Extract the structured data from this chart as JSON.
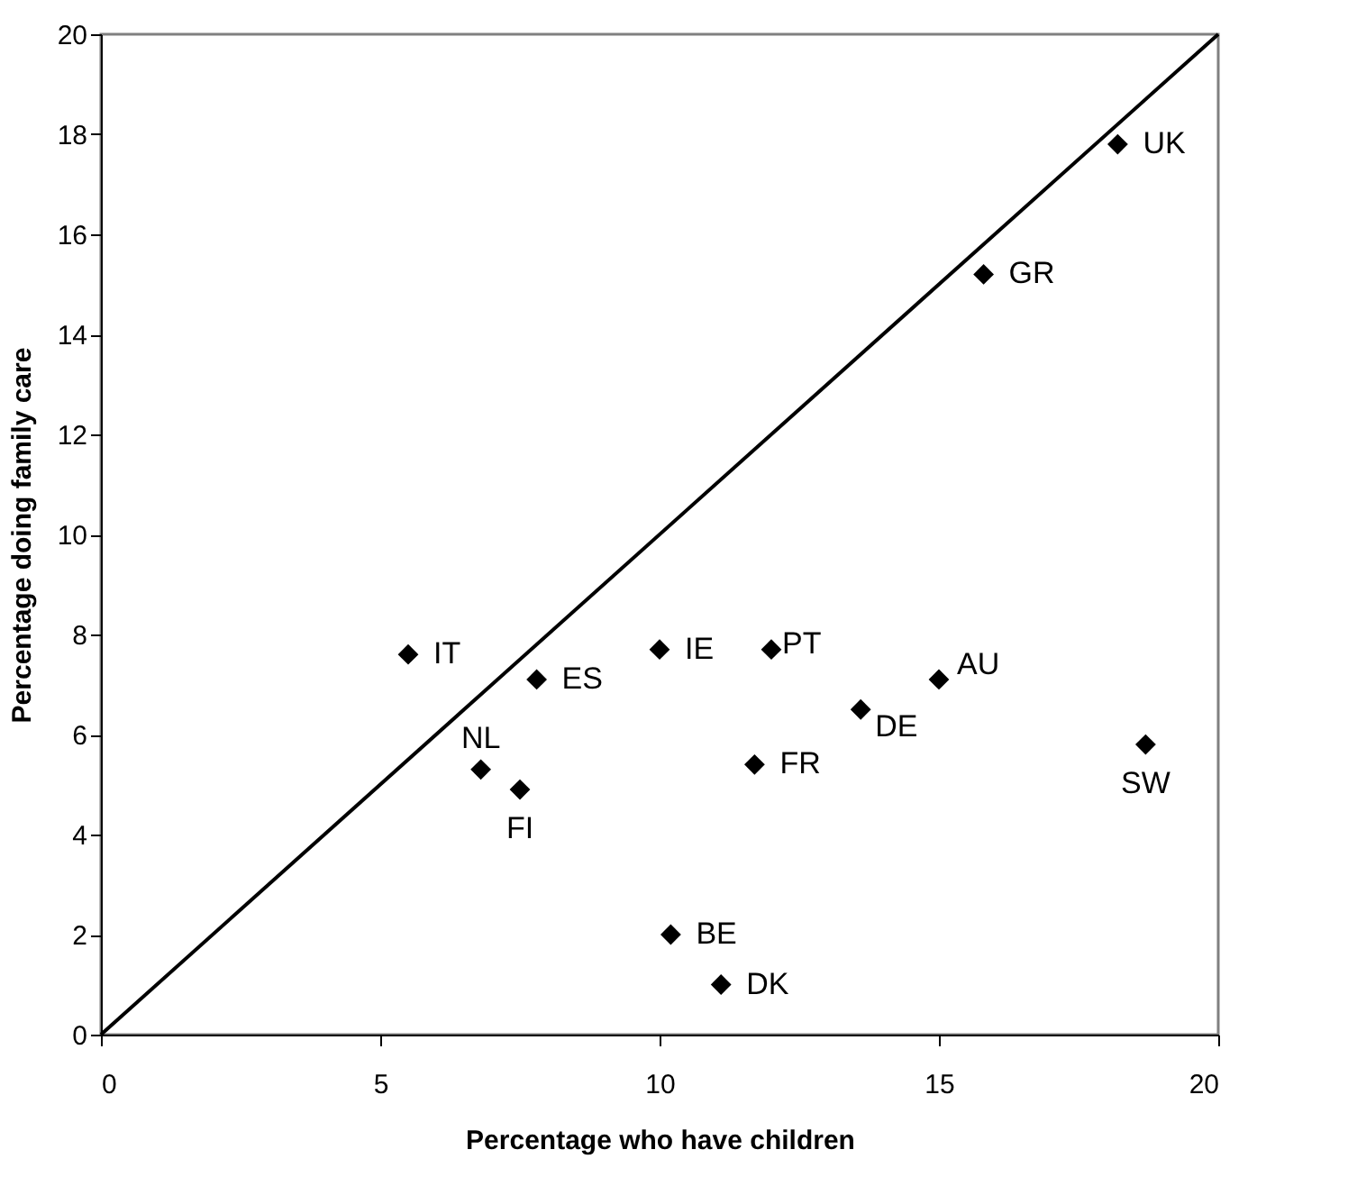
{
  "chart_data": {
    "type": "scatter",
    "xlabel": "Percentage who have children",
    "ylabel": "Percentage doing family care",
    "xlim": [
      0,
      20
    ],
    "ylim": [
      0,
      20
    ],
    "xticks": [
      0,
      5,
      10,
      15,
      20
    ],
    "yticks": [
      0,
      2,
      4,
      6,
      8,
      10,
      12,
      14,
      16,
      18,
      20
    ],
    "grid": false,
    "series": [
      {
        "color": "#000000",
        "marker": "diamond",
        "x": [
          18.2,
          15.8,
          5.5,
          7.8,
          10.0,
          12.0,
          15.0,
          13.6,
          18.7,
          6.8,
          7.5,
          11.7,
          10.2,
          11.1
        ],
        "values": [
          17.8,
          15.2,
          7.6,
          7.1,
          7.7,
          7.7,
          7.1,
          6.5,
          5.8,
          5.3,
          4.9,
          5.4,
          2.0,
          1.0
        ]
      },
      {
        "type": "line",
        "color": "#000000",
        "line_style": "solid",
        "marker": "none",
        "x": [
          0,
          20
        ],
        "values": [
          0,
          20
        ]
      }
    ],
    "annotations": [
      {
        "text": "UK",
        "x": 18.2,
        "y": 17.8
      },
      {
        "text": "GR",
        "x": 15.8,
        "y": 15.2
      },
      {
        "text": "IT",
        "x": 5.5,
        "y": 7.6
      },
      {
        "text": "ES",
        "x": 7.8,
        "y": 7.1
      },
      {
        "text": "IE",
        "x": 10.0,
        "y": 7.7
      },
      {
        "text": "PT",
        "x": 12.0,
        "y": 7.7
      },
      {
        "text": "AU",
        "x": 15.0,
        "y": 7.1
      },
      {
        "text": "DE",
        "x": 13.6,
        "y": 6.5
      },
      {
        "text": "SW",
        "x": 18.7,
        "y": 5.8
      },
      {
        "text": "NL",
        "x": 6.8,
        "y": 5.3
      },
      {
        "text": "FI",
        "x": 7.5,
        "y": 4.9
      },
      {
        "text": "FR",
        "x": 11.7,
        "y": 5.4
      },
      {
        "text": "BE",
        "x": 10.2,
        "y": 2.0
      },
      {
        "text": "DK",
        "x": 11.1,
        "y": 1.0
      }
    ]
  }
}
